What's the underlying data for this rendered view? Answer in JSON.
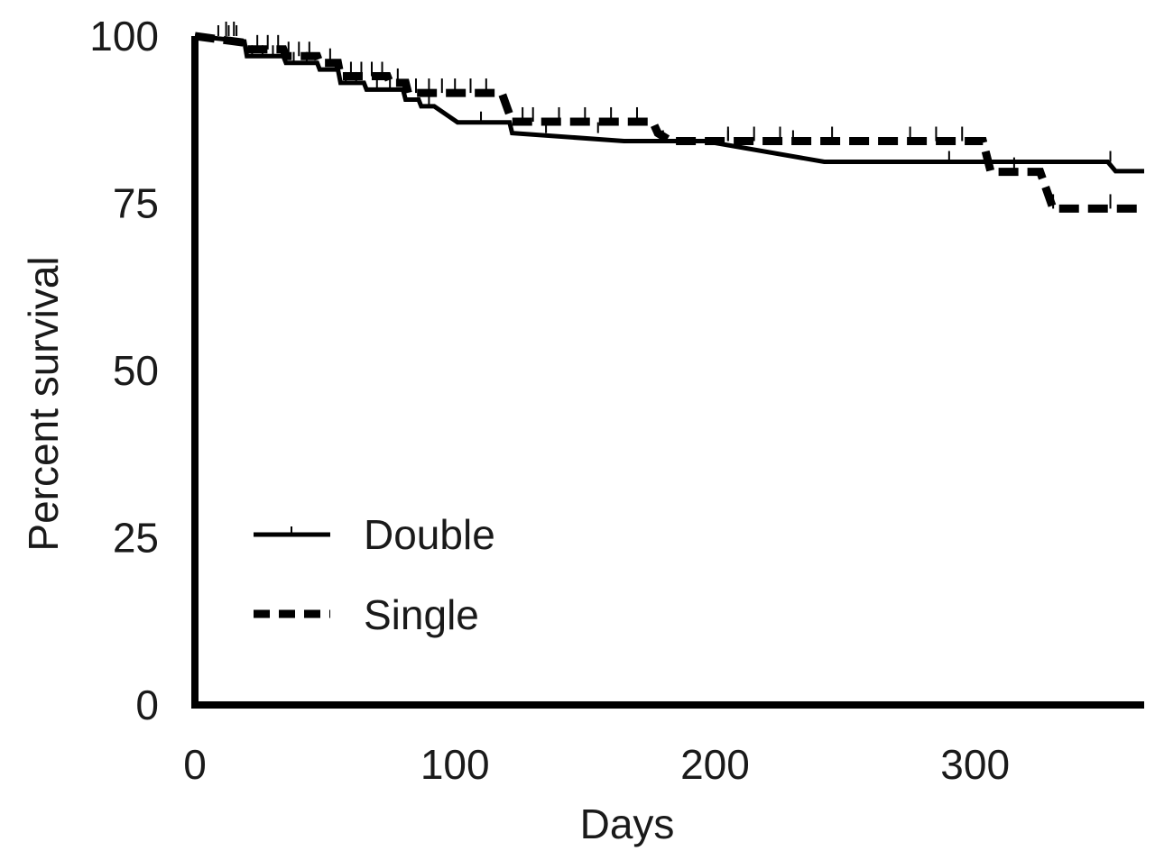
{
  "chart_data": {
    "type": "line",
    "xlabel": "Days",
    "ylabel": "Percent survival",
    "xlim": [
      0,
      365
    ],
    "ylim": [
      0,
      100
    ],
    "x_ticks": [
      0,
      100,
      200,
      300
    ],
    "y_ticks": [
      0,
      25,
      50,
      75,
      100
    ],
    "grid": false,
    "legend_position": "lower-left",
    "series": [
      {
        "name": "Double",
        "style": "solid",
        "color": "#000000",
        "steps": [
          [
            0,
            100
          ],
          [
            19,
            99.2
          ],
          [
            20,
            97
          ],
          [
            34,
            97
          ],
          [
            35,
            96
          ],
          [
            47,
            96
          ],
          [
            48,
            95
          ],
          [
            55,
            95
          ],
          [
            56,
            93
          ],
          [
            65,
            93
          ],
          [
            66,
            92
          ],
          [
            80,
            92
          ],
          [
            81,
            90.5
          ],
          [
            86,
            90.5
          ],
          [
            87,
            89.5
          ],
          [
            92,
            89.5
          ],
          [
            101,
            87.1
          ],
          [
            121,
            87.1
          ],
          [
            122,
            85.5
          ],
          [
            165,
            84.3
          ],
          [
            196,
            84.3
          ],
          [
            242,
            81.2
          ],
          [
            351,
            81.2
          ],
          [
            354,
            79.8
          ],
          [
            365,
            79.8
          ]
        ],
        "censor_x": [
          9,
          13,
          16,
          22,
          26,
          30,
          38,
          43,
          58,
          62,
          70,
          75,
          90,
          110,
          135,
          155,
          180,
          205,
          230,
          290,
          305,
          352
        ]
      },
      {
        "name": "Single",
        "style": "dashed",
        "color": "#000000",
        "steps": [
          [
            0,
            100
          ],
          [
            19,
            99
          ],
          [
            20,
            98
          ],
          [
            34,
            98
          ],
          [
            35,
            97
          ],
          [
            47,
            97
          ],
          [
            48,
            96
          ],
          [
            55,
            96
          ],
          [
            56,
            94
          ],
          [
            74,
            94
          ],
          [
            75,
            93
          ],
          [
            81,
            93
          ],
          [
            82,
            91.5
          ],
          [
            118,
            91.5
          ],
          [
            122,
            87.2
          ],
          [
            176,
            87.2
          ],
          [
            178,
            85.5
          ],
          [
            183,
            84.3
          ],
          [
            303,
            84.3
          ],
          [
            306,
            79.7
          ],
          [
            325,
            79.7
          ],
          [
            330,
            74.2
          ],
          [
            365,
            74.2
          ]
        ],
        "censor_x": [
          12,
          15,
          24,
          28,
          32,
          36,
          40,
          44,
          52,
          60,
          64,
          68,
          72,
          78,
          85,
          90,
          95,
          100,
          106,
          112,
          126,
          130,
          140,
          150,
          160,
          170,
          205,
          215,
          225,
          245,
          275,
          285,
          295,
          315,
          330,
          352
        ]
      }
    ]
  }
}
